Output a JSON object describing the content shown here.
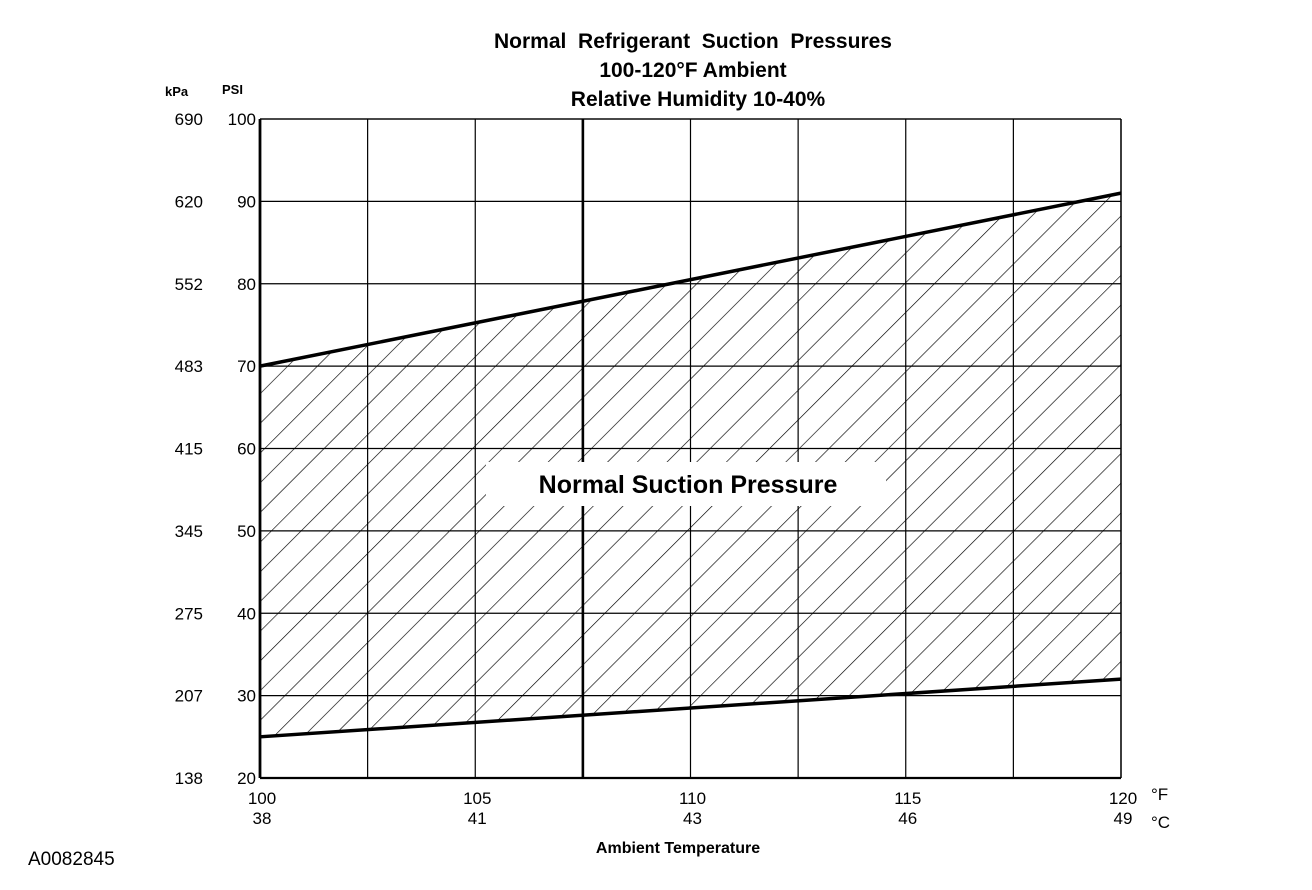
{
  "chart_data": {
    "type": "area",
    "title_lines": [
      "Normal  Refrigerant  Suction  Pressures",
      "100-120°F Ambient",
      "Relative Humidity 10-40%"
    ],
    "xlabel": "Ambient Temperature",
    "x_unit_primary": "°F",
    "x_unit_secondary": "°C",
    "y_unit_primary": "PSI",
    "y_unit_secondary": "kPa",
    "xlim": [
      100,
      120
    ],
    "ylim": [
      20,
      100
    ],
    "x_ticks": [
      {
        "f": "100",
        "c": "38"
      },
      {
        "f": "105",
        "c": "41"
      },
      {
        "f": "110",
        "c": "43"
      },
      {
        "f": "115",
        "c": "46"
      },
      {
        "f": "120",
        "c": "49"
      }
    ],
    "y_ticks": [
      {
        "psi": "100",
        "kpa": "690"
      },
      {
        "psi": "90",
        "kpa": "620"
      },
      {
        "psi": "80",
        "kpa": "552"
      },
      {
        "psi": "70",
        "kpa": "483"
      },
      {
        "psi": "60",
        "kpa": "415"
      },
      {
        "psi": "50",
        "kpa": "345"
      },
      {
        "psi": "40",
        "kpa": "275"
      },
      {
        "psi": "30",
        "kpa": "207"
      },
      {
        "psi": "20",
        "kpa": "138"
      }
    ],
    "x_vertical_gridlines": [
      100,
      102.5,
      105,
      107.5,
      110,
      112.5,
      115,
      117.5,
      120
    ],
    "upper_bound": {
      "x": [
        100,
        120
      ],
      "y": [
        70,
        91
      ]
    },
    "lower_bound": {
      "x": [
        100,
        120
      ],
      "y": [
        25,
        32
      ]
    },
    "region_label": "Normal Suction Pressure",
    "region_fill": "diagonal-hatch",
    "grid": true
  },
  "figure_id": "A0082845"
}
